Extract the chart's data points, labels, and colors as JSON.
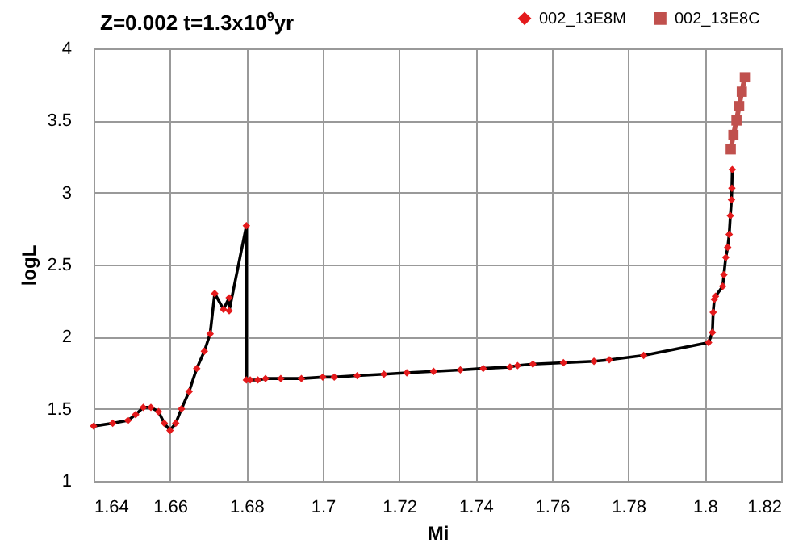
{
  "chart_data": {
    "type": "line",
    "title": "Z=0.002 t=1.3x10$^{9}$yr",
    "xlabel": "Mi",
    "ylabel": "logL",
    "xlim": [
      1.64,
      1.82
    ],
    "xticks": [
      1.64,
      1.66,
      1.68,
      1.7,
      1.72,
      1.74,
      1.76,
      1.78,
      1.8,
      1.82
    ],
    "ylim": [
      1,
      4
    ],
    "yticks": [
      1,
      1.5,
      2,
      2.5,
      3,
      3.5,
      4
    ],
    "grid": true,
    "legend": "top right",
    "series": [
      {
        "color": "#000000",
        "marker": "none",
        "x": [
          1.64,
          1.645,
          1.649,
          1.651,
          1.653,
          1.655,
          1.657,
          1.6585,
          1.66,
          1.6615,
          1.663,
          1.665,
          1.667,
          1.669,
          1.6705,
          1.6717,
          1.674,
          1.6755,
          1.6755,
          1.68,
          1.68,
          1.681,
          1.683,
          1.685,
          1.689,
          1.6944,
          1.7,
          1.703,
          1.709,
          1.716,
          1.722,
          1.729,
          1.736,
          1.742,
          1.749,
          1.751,
          1.755,
          1.763,
          1.771,
          1.775,
          1.784,
          1.801,
          1.802,
          1.8022,
          1.8025,
          1.8028,
          1.8047,
          1.805,
          1.8055,
          1.806,
          1.8064,
          1.8067,
          1.807,
          1.8071,
          1.8072
        ],
        "values": [
          1.38,
          1.4,
          1.42,
          1.46,
          1.51,
          1.51,
          1.48,
          1.4,
          1.35,
          1.4,
          1.5,
          1.62,
          1.78,
          1.9,
          2.02,
          2.3,
          2.19,
          2.27,
          2.18,
          2.77,
          1.7,
          1.7,
          1.7,
          1.71,
          1.71,
          1.71,
          1.72,
          1.72,
          1.73,
          1.74,
          1.75,
          1.76,
          1.77,
          1.78,
          1.79,
          1.8,
          1.81,
          1.82,
          1.83,
          1.84,
          1.87,
          1.96,
          2.03,
          2.17,
          2.26,
          2.28,
          2.35,
          2.43,
          2.55,
          2.62,
          2.71,
          2.84,
          2.95,
          3.03,
          3.16
        ]
      },
      {
        "type": "scatter",
        "name": "002_13E8M",
        "color": "#e41a1c",
        "marker": "diamond",
        "x": [
          1.64,
          1.645,
          1.649,
          1.651,
          1.653,
          1.655,
          1.657,
          1.6585,
          1.66,
          1.6615,
          1.663,
          1.665,
          1.667,
          1.669,
          1.6705,
          1.6717,
          1.674,
          1.6755,
          1.6755,
          1.68,
          1.68,
          1.681,
          1.683,
          1.685,
          1.689,
          1.6944,
          1.7,
          1.703,
          1.709,
          1.716,
          1.722,
          1.729,
          1.736,
          1.742,
          1.749,
          1.751,
          1.755,
          1.763,
          1.771,
          1.775,
          1.784,
          1.801,
          1.802,
          1.8022,
          1.8025,
          1.8028,
          1.8047,
          1.805,
          1.8055,
          1.806,
          1.8064,
          1.8067,
          1.807,
          1.8071,
          1.8072
        ],
        "values": [
          1.38,
          1.4,
          1.42,
          1.46,
          1.51,
          1.51,
          1.48,
          1.4,
          1.35,
          1.4,
          1.5,
          1.62,
          1.78,
          1.9,
          2.02,
          2.3,
          2.19,
          2.27,
          2.18,
          2.77,
          1.7,
          1.7,
          1.7,
          1.71,
          1.71,
          1.71,
          1.72,
          1.72,
          1.73,
          1.74,
          1.75,
          1.76,
          1.77,
          1.78,
          1.79,
          1.8,
          1.81,
          1.82,
          1.83,
          1.84,
          1.87,
          1.96,
          2.03,
          2.17,
          2.26,
          2.28,
          2.35,
          2.43,
          2.55,
          2.62,
          2.71,
          2.84,
          2.95,
          3.03,
          3.16
        ]
      },
      {
        "name": "002_13E8C",
        "color": "#c0504d",
        "marker": "square",
        "x": [
          1.8068,
          1.8075,
          1.8083,
          1.809,
          1.8097,
          1.8105
        ],
        "values": [
          3.3,
          3.4,
          3.5,
          3.6,
          3.7,
          3.8
        ]
      }
    ]
  }
}
